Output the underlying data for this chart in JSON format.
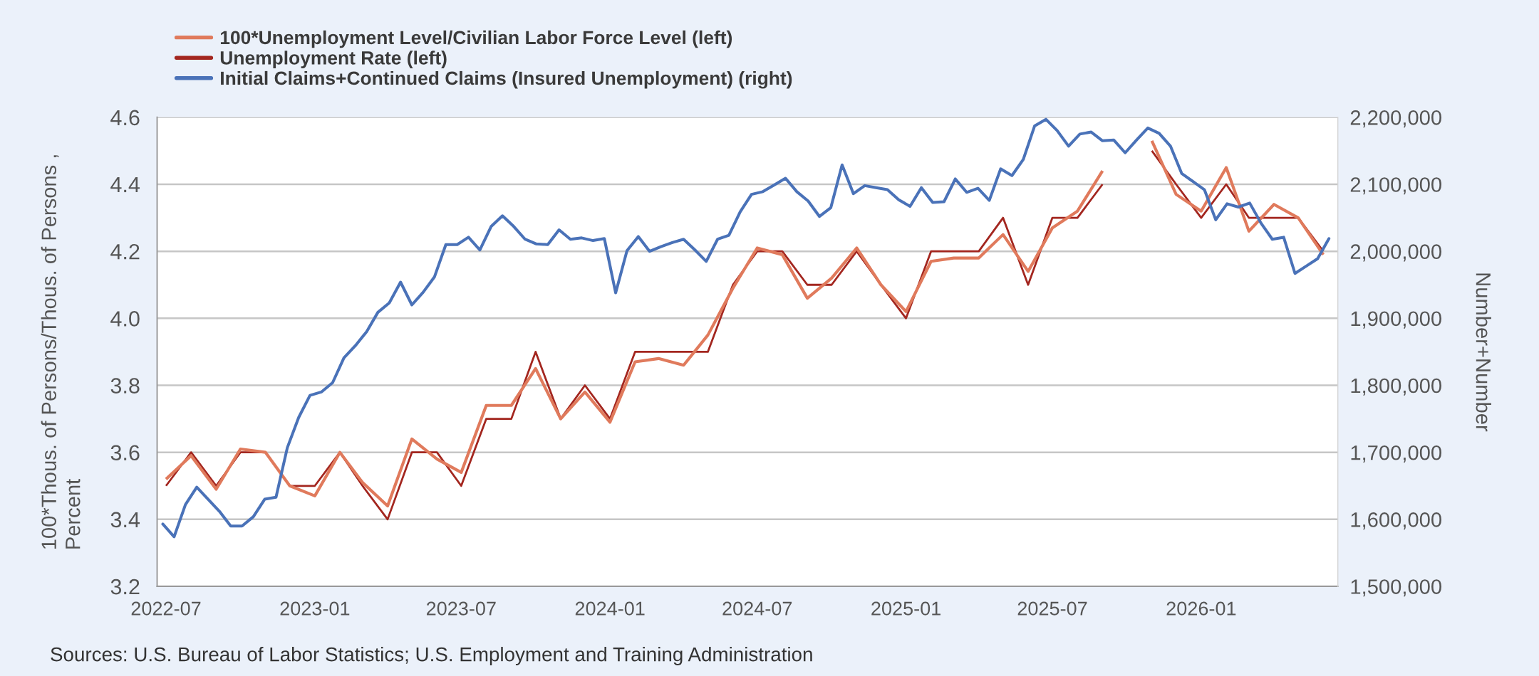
{
  "chart_data": {
    "type": "line",
    "ylabel": "100*Thous. of Persons/Thous. of Persons ,\nPercent",
    "y2label": "Number+Number",
    "xlim": [
      "2022-06-20",
      "2026-06-19"
    ],
    "xticks": [
      "2022-07",
      "2023-01",
      "2023-07",
      "2024-01",
      "2024-07",
      "2025-01",
      "2025-07",
      "2026-01"
    ],
    "ylim": [
      3.2,
      4.6
    ],
    "yticks": [
      3.2,
      3.4,
      3.6,
      3.8,
      {
        "value": 4.0,
        "label": "4.0"
      },
      4.2,
      4.4,
      4.6
    ],
    "y2lim": [
      1500000,
      2200000
    ],
    "y2ticks": [
      {
        "value": 1500000,
        "label": "1,500,000"
      },
      {
        "value": 1600000,
        "label": "1,600,000"
      },
      {
        "value": 1700000,
        "label": "1,700,000"
      },
      {
        "value": 1800000,
        "label": "1,800,000"
      },
      {
        "value": 1900000,
        "label": "1,900,000"
      },
      {
        "value": 2000000,
        "label": "2,000,000"
      },
      {
        "value": 2100000,
        "label": "2,100,000"
      },
      {
        "value": 2200000,
        "label": "2,200,000"
      }
    ],
    "grid": "y",
    "legend": "top left",
    "line_style": "solid",
    "x": [
      "2022-07",
      "2022-08",
      "2022-09",
      "2022-10",
      "2022-11",
      "2022-12",
      "2023-01",
      "2023-02",
      "2023-03",
      "2023-04",
      "2023-05",
      "2023-06",
      "2023-07",
      "2023-08",
      "2023-09",
      "2023-10",
      "2023-11",
      "2023-12",
      "2024-01",
      "2024-02",
      "2024-03",
      "2024-04",
      "2024-05",
      "2024-06",
      "2024-07",
      "2024-08",
      "2024-09",
      "2024-10",
      "2024-11",
      "2024-12",
      "2025-01",
      "2025-02",
      "2025-03",
      "2025-04",
      "2025-05",
      "2025-06",
      "2025-07",
      "2025-08",
      "2025-09",
      "2025-10",
      "2025-11",
      "2025-12",
      "2026-01",
      "2026-02",
      "2026-03",
      "2026-04",
      "2026-05",
      "2026-06"
    ],
    "series": [
      {
        "name": "100*Unemployment Level/Civilian Labor Force Level (left)",
        "color": "#e07a5c",
        "values": [
          3.52,
          3.59,
          3.49,
          3.61,
          3.6,
          3.5,
          3.47,
          3.6,
          3.51,
          3.44,
          3.64,
          3.58,
          3.54,
          3.74,
          3.74,
          3.85,
          3.7,
          3.78,
          3.69,
          3.87,
          3.88,
          3.86,
          3.95,
          4.09,
          4.21,
          4.19,
          4.06,
          4.12,
          4.21,
          4.1,
          4.02,
          4.17,
          4.18,
          4.18,
          4.25,
          4.14,
          4.27,
          4.32,
          4.44,
          null,
          4.53,
          4.37,
          4.32,
          4.45,
          4.26,
          4.34,
          4.3,
          4.19
        ]
      },
      {
        "name": "Unemployment Rate (left)",
        "color": "#a3261f",
        "values": [
          3.5,
          3.6,
          3.5,
          3.6,
          3.6,
          3.5,
          3.5,
          3.6,
          3.5,
          3.4,
          3.6,
          3.6,
          3.5,
          3.7,
          3.7,
          3.9,
          3.7,
          3.8,
          3.7,
          3.9,
          3.9,
          3.9,
          3.9,
          4.1,
          4.2,
          4.2,
          4.1,
          4.1,
          4.2,
          4.1,
          4.0,
          4.2,
          4.2,
          4.2,
          4.3,
          4.1,
          4.3,
          4.3,
          4.4,
          null,
          4.5,
          4.4,
          4.3,
          4.4,
          4.3,
          4.3,
          4.3,
          4.2
        ]
      },
      {
        "name": "Initial Claims+Continued Claims (Insured Unemployment) (right)",
        "color": "#4a72b8",
        "axis": "y2",
        "x": [
          "2022-06-27",
          "2022-07-11",
          "2022-07-25",
          "2022-08-08",
          "2022-08-22",
          "2022-09-05",
          "2022-09-19",
          "2022-10-03",
          "2022-10-17",
          "2022-10-31",
          "2022-11-14",
          "2022-11-28",
          "2022-12-12",
          "2022-12-26",
          "2023-01-09",
          "2023-01-23",
          "2023-02-06",
          "2023-02-20",
          "2023-03-06",
          "2023-03-20",
          "2023-04-03",
          "2023-04-17",
          "2023-05-01",
          "2023-05-15",
          "2023-05-29",
          "2023-06-12",
          "2023-06-26",
          "2023-07-10",
          "2023-07-24",
          "2023-08-07",
          "2023-08-21",
          "2023-09-04",
          "2023-09-18",
          "2023-10-02",
          "2023-10-16",
          "2023-10-30",
          "2023-11-13",
          "2023-11-27",
          "2023-12-11",
          "2023-12-25",
          "2024-01-08",
          "2024-01-22",
          "2024-02-05",
          "2024-02-19",
          "2024-03-04",
          "2024-03-18",
          "2024-04-01",
          "2024-04-15",
          "2024-04-29",
          "2024-05-13",
          "2024-05-27",
          "2024-06-10",
          "2024-06-24",
          "2024-07-08",
          "2024-07-22",
          "2024-08-05",
          "2024-08-19",
          "2024-09-02",
          "2024-09-16",
          "2024-09-30",
          "2024-10-14",
          "2024-10-28",
          "2024-11-11",
          "2024-11-25",
          "2024-12-09",
          "2024-12-23",
          "2025-01-06",
          "2025-01-20",
          "2025-02-03",
          "2025-02-17",
          "2025-03-03",
          "2025-03-17",
          "2025-03-31",
          "2025-04-14",
          "2025-04-28",
          "2025-05-12",
          "2025-05-26",
          "2025-06-09",
          "2025-06-23",
          "2025-07-07",
          "2025-07-21",
          "2025-08-04",
          "2025-08-18",
          "2025-09-01",
          "2025-09-15",
          "2025-09-29",
          "2025-10-13",
          "2025-10-27",
          "2025-11-10",
          "2025-11-24",
          "2025-12-08",
          "2025-12-22",
          "2026-01-05",
          "2026-01-19",
          "2026-02-02",
          "2026-02-16",
          "2026-03-02",
          "2026-03-16",
          "2026-03-30",
          "2026-04-13",
          "2026-04-27",
          "2026-05-11",
          "2026-05-25",
          "2026-06-08"
        ],
        "values": [
          1593000,
          1574000,
          1622000,
          1648000,
          1630000,
          1612000,
          1590000,
          1590000,
          1604000,
          1630000,
          1633000,
          1707000,
          1752000,
          1785000,
          1790000,
          1804000,
          1841000,
          1859000,
          1880000,
          1909000,
          1923000,
          1954000,
          1920000,
          1939000,
          1962000,
          2010000,
          2010000,
          2021000,
          2002000,
          2037000,
          2053000,
          2037000,
          2018000,
          2011000,
          2010000,
          2032000,
          2018000,
          2020000,
          2016000,
          2019000,
          1938000,
          2001000,
          2022000,
          2000000,
          2007000,
          2013000,
          2018000,
          2002000,
          1985000,
          2018000,
          2024000,
          2059000,
          2085000,
          2089000,
          2099000,
          2109000,
          2089000,
          2075000,
          2052000,
          2065000,
          2129000,
          2086000,
          2098000,
          2095000,
          2092000,
          2077000,
          2067000,
          2095000,
          2073000,
          2074000,
          2108000,
          2088000,
          2094000,
          2076000,
          2123000,
          2113000,
          2137000,
          2187000,
          2197000,
          2180000,
          2157000,
          2175000,
          2178000,
          2165000,
          2166000,
          2147000,
          2166000,
          2184000,
          2176000,
          2157000,
          2116000,
          2104000,
          2092000,
          2047000,
          2071000,
          2066000,
          2072000,
          2042000,
          2018000,
          2021000,
          1967000,
          1978000,
          1989000,
          2019000
        ]
      }
    ],
    "annotations": [
      "Sources: U.S. Bureau of Labor Statistics; U.S. Employment and Training Administration"
    ]
  }
}
